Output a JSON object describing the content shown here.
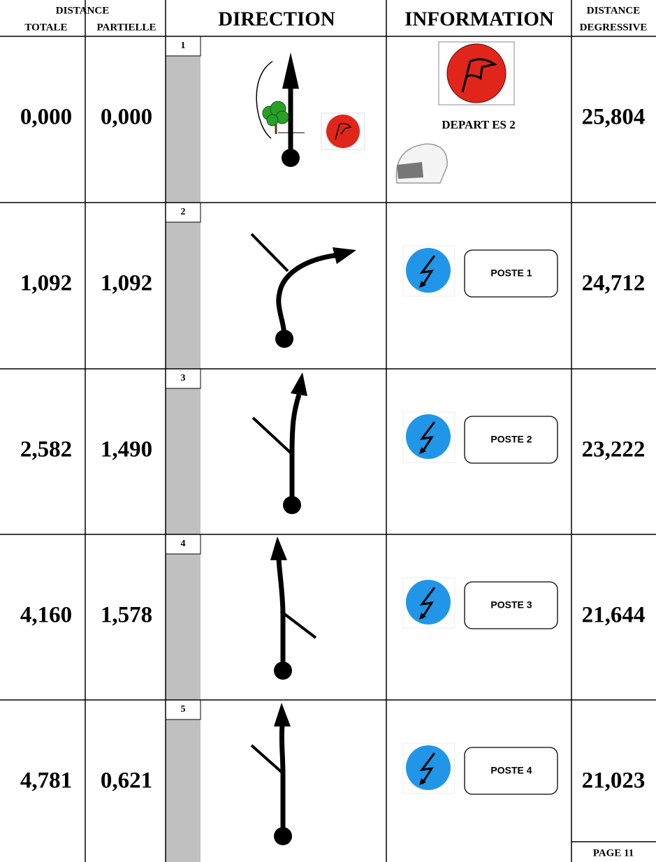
{
  "header": {
    "distance": "DISTANCE",
    "totale": "TOTALE",
    "partielle": "PARTIELLE",
    "direction": "DIRECTION",
    "information": "INFORMATION",
    "degressive_1": "DISTANCE",
    "degressive_2": "DEGRESSIVE"
  },
  "rows": [
    {
      "number": "1",
      "total": "0,000",
      "partial": "0,000",
      "info": "DEPART ES 2",
      "remaining": "25,804"
    },
    {
      "number": "2",
      "total": "1,092",
      "partial": "1,092",
      "info": "POSTE 1",
      "remaining": "24,712"
    },
    {
      "number": "3",
      "total": "2,582",
      "partial": "1,490",
      "info": "POSTE 2",
      "remaining": "23,222"
    },
    {
      "number": "4",
      "total": "4,160",
      "partial": "1,578",
      "info": "POSTE 3",
      "remaining": "21,644"
    },
    {
      "number": "5",
      "total": "4,781",
      "partial": "0,621",
      "info": "POSTE 4",
      "remaining": "21,023"
    }
  ],
  "footer": {
    "page": "PAGE 11"
  }
}
